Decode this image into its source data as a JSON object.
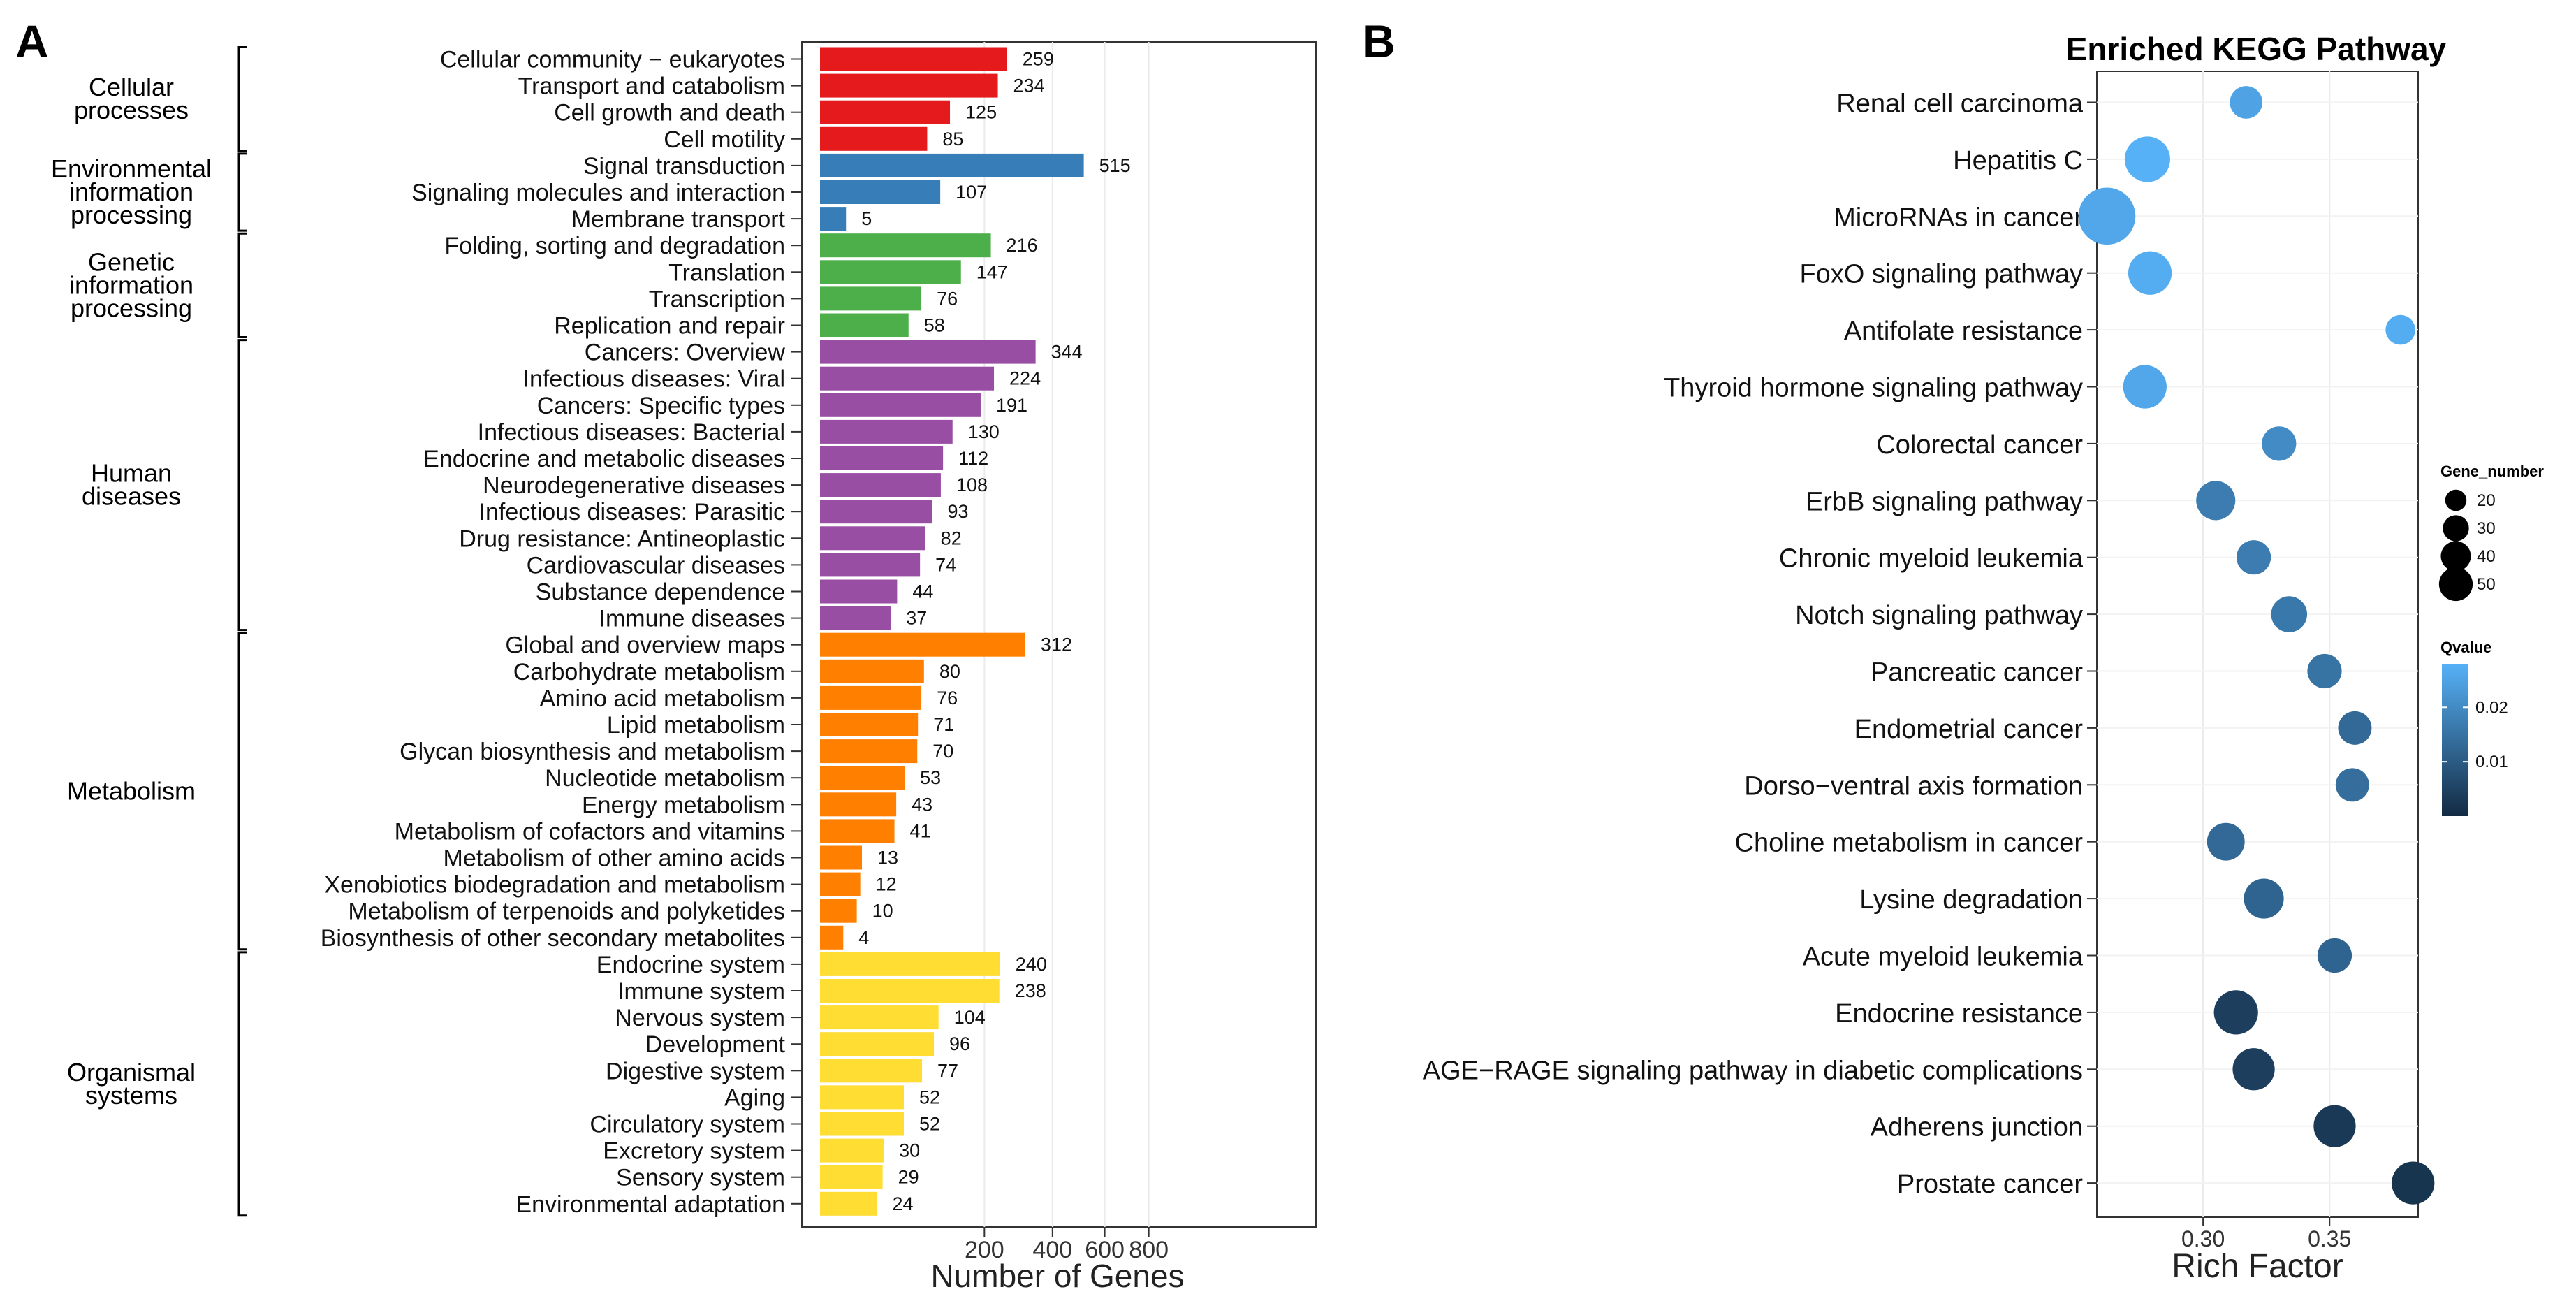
{
  "panel_labels": {
    "a": "A",
    "b": "B"
  },
  "chart_data": [
    {
      "type": "bar",
      "orientation": "horizontal",
      "xlabel": "Number of Genes",
      "x_ticks": [
        "200",
        "400",
        "600",
        "800"
      ],
      "groups": [
        {
          "name": "Cellular processes",
          "lines": [
            "Cellular",
            "processes"
          ],
          "color": "#e41a1c",
          "count": 4
        },
        {
          "name": "Environmental information processing",
          "lines": [
            "Environmental",
            "information",
            "processing"
          ],
          "color": "#377eb8",
          "count": 3
        },
        {
          "name": "Genetic information processing",
          "lines": [
            "Genetic",
            "information",
            "processing"
          ],
          "color": "#4daf4a",
          "count": 4
        },
        {
          "name": "Human diseases",
          "lines": [
            "Human",
            "diseases"
          ],
          "color": "#984ea3",
          "count": 11
        },
        {
          "name": "Metabolism",
          "lines": [
            "Metabolism"
          ],
          "color": "#ff7f00",
          "count": 12
        },
        {
          "name": "Organismal systems",
          "lines": [
            "Organismal",
            "systems"
          ],
          "color": "#ffdd33",
          "count": 10
        }
      ],
      "categories": [
        "Cellular community − eukaryotes",
        "Transport and catabolism",
        "Cell growth and death",
        "Cell motility",
        "Signal transduction",
        "Signaling molecules and interaction",
        "Membrane transport",
        "Folding, sorting and degradation",
        "Translation",
        "Transcription",
        "Replication and repair",
        "Cancers: Overview",
        "Infectious diseases: Viral",
        "Cancers: Specific types",
        "Infectious diseases: Bacterial",
        "Endocrine and metabolic diseases",
        "Neurodegenerative diseases",
        "Infectious diseases: Parasitic",
        "Drug resistance: Antineoplastic",
        "Cardiovascular diseases",
        "Substance dependence",
        "Immune diseases",
        "Global and overview maps",
        "Carbohydrate metabolism",
        "Amino acid metabolism",
        "Lipid metabolism",
        "Glycan biosynthesis and metabolism",
        "Nucleotide metabolism",
        "Energy metabolism",
        "Metabolism of cofactors and vitamins",
        "Metabolism of other amino acids",
        "Xenobiotics biodegradation and metabolism",
        "Metabolism of terpenoids and polyketides",
        "Biosynthesis of other secondary metabolites",
        "Endocrine system",
        "Immune system",
        "Nervous system",
        "Development",
        "Digestive system",
        "Aging",
        "Circulatory system",
        "Excretory system",
        "Sensory system",
        "Environmental adaptation"
      ],
      "values": [
        259,
        234,
        125,
        85,
        515,
        107,
        5,
        216,
        147,
        76,
        58,
        344,
        224,
        191,
        130,
        112,
        108,
        93,
        82,
        74,
        44,
        37,
        312,
        80,
        76,
        71,
        70,
        53,
        43,
        41,
        13,
        12,
        10,
        4,
        240,
        238,
        104,
        96,
        77,
        52,
        52,
        30,
        29,
        24
      ],
      "value_labels": [
        "259",
        "234",
        "125",
        "85",
        "515",
        "107",
        "5",
        "216",
        "147",
        "76",
        "58",
        "344",
        "224",
        "191",
        "130",
        "112",
        "108",
        "93",
        "82",
        "74",
        "44",
        "37",
        "312",
        "80",
        "76",
        "71",
        "70",
        "53",
        "43",
        "41",
        "13",
        "12",
        "10",
        "4",
        "240",
        "238",
        "104",
        "96",
        "77",
        "52",
        "52",
        "30",
        "29",
        "24"
      ]
    },
    {
      "type": "scatter",
      "title": "Enriched KEGG Pathway",
      "xlabel": "Rich Factor",
      "xlim": [
        0.258,
        0.385
      ],
      "x_ticks": [
        0.3,
        0.35
      ],
      "x_tick_labels": [
        "0.30",
        "0.35"
      ],
      "categories": [
        "Renal cell carcinoma",
        "Hepatitis C",
        "MicroRNAs in cancer",
        "FoxO signaling pathway",
        "Antifolate resistance",
        "Thyroid hormone signaling pathway",
        "Colorectal cancer",
        "ErbB signaling pathway",
        "Chronic myeloid leukemia",
        "Notch signaling pathway",
        "Pancreatic cancer",
        "Endometrial cancer",
        "Dorso−ventral axis formation",
        "Choline metabolism in cancer",
        "Lysine degradation",
        "Acute myeloid leukemia",
        "Endocrine resistance",
        "AGE−RAGE signaling pathway in diabetic complications",
        "Adherens junction",
        "Prostate cancer"
      ],
      "rich_factor": [
        0.317,
        0.278,
        0.262,
        0.279,
        0.378,
        0.277,
        0.33,
        0.305,
        0.32,
        0.334,
        0.348,
        0.36,
        0.359,
        0.309,
        0.324,
        0.352,
        0.313,
        0.32,
        0.352,
        0.383
      ],
      "gene_number": [
        18,
        35,
        55,
        32,
        15,
        32,
        20,
        26,
        20,
        22,
        20,
        19,
        19,
        24,
        27,
        20,
        33,
        30,
        30,
        31
      ],
      "qvalue": [
        0.025,
        0.028,
        0.026,
        0.027,
        0.027,
        0.026,
        0.02,
        0.017,
        0.017,
        0.016,
        0.015,
        0.013,
        0.014,
        0.013,
        0.012,
        0.012,
        0.004,
        0.004,
        0.003,
        0.002
      ],
      "legend_size": {
        "title": "Gene_number",
        "values": [
          20,
          30,
          40,
          50
        ],
        "labels": [
          "20",
          "30",
          "40",
          "50"
        ]
      },
      "legend_color": {
        "title": "Qvalue",
        "range": [
          0,
          0.028
        ],
        "ticks": [
          0.02,
          0.01
        ],
        "tick_labels": [
          "0.02",
          "0.01"
        ],
        "low_color": "#132b43",
        "high_color": "#56b1f7"
      }
    }
  ]
}
